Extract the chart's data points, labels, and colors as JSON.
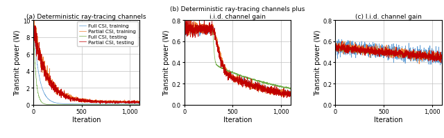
{
  "fig_width": 6.4,
  "fig_height": 2.01,
  "dpi": 100,
  "subplots": [
    {
      "title": "(a) Deterministic ray-tracing channels",
      "xlabel": "Iteration",
      "ylabel": "Transmit power (W)",
      "xlim": [
        0,
        1100
      ],
      "ylim": [
        0,
        10
      ],
      "yticks": [
        0,
        2,
        4,
        6,
        8,
        10
      ],
      "xticks": [
        0,
        500,
        1000
      ],
      "xticklabels": [
        "0",
        "500",
        "1,000"
      ],
      "has_legend": true,
      "n_iter": 1100
    },
    {
      "title": "(b) Deterministic ray-tracing channels plus\ni.i.d. channel gain",
      "xlabel": "Iteration",
      "ylabel": "Transmit power (W)",
      "xlim": [
        0,
        1100
      ],
      "ylim": [
        0,
        0.8
      ],
      "yticks": [
        0,
        0.2,
        0.4,
        0.6,
        0.8
      ],
      "xticks": [
        0,
        500,
        1000
      ],
      "xticklabels": [
        "0",
        "500",
        "1,000"
      ],
      "has_legend": false,
      "n_iter": 1100
    },
    {
      "title": "(c) I.i.d. channel gain",
      "xlabel": "Iteration",
      "ylabel": "Transmit power (W)",
      "xlim": [
        0,
        1100
      ],
      "ylim": [
        0,
        0.8
      ],
      "yticks": [
        0,
        0.2,
        0.4,
        0.6,
        0.8
      ],
      "xticks": [
        0,
        500,
        1000
      ],
      "xticklabels": [
        "0",
        "500",
        "1,000"
      ],
      "has_legend": false,
      "n_iter": 1100
    }
  ],
  "colors": {
    "full_train": "#5b9bd5",
    "partial_train": "#ed7d31",
    "full_test": "#70ad47",
    "partial_test": "#c00000"
  },
  "legend_labels": [
    "Full CSI, training",
    "Partial CSI, training",
    "Full CSI, testing",
    "Partial CSI, testing"
  ],
  "line_width": 0.5,
  "grid_color": "#c0c0c0",
  "grid_linewidth": 0.5
}
